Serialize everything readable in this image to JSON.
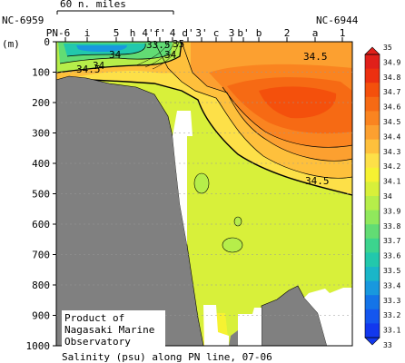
{
  "chart_data": {
    "type": "heatmap",
    "title": "Salinity (psu) along PN line, 07-06",
    "credit": "Product of\nNagasaki Marine\nObservatory",
    "ylabel": "(m)",
    "ylim": [
      0,
      1000
    ],
    "y_ticks": [
      0,
      100,
      200,
      300,
      400,
      500,
      600,
      700,
      800,
      900,
      1000
    ],
    "scale_bar": "60 n. miles",
    "end_labels": {
      "left": "NC-6959",
      "right": "NC-6944"
    },
    "stations": [
      "PN-6",
      "i",
      "5",
      "h",
      "4'",
      "f'",
      "4",
      "d'",
      "3'",
      "c",
      "3",
      "b'",
      "b",
      "2",
      "a",
      "1"
    ],
    "contour_labels": [
      "33.5",
      "34",
      "34",
      "34",
      "34.5",
      "34.5",
      "34.5",
      "35"
    ],
    "colorbar": {
      "levels": [
        35,
        34.9,
        34.8,
        34.7,
        34.6,
        34.5,
        34.4,
        34.3,
        34.2,
        34.1,
        34,
        33.9,
        33.8,
        33.7,
        33.6,
        33.5,
        33.4,
        33.3,
        33.2,
        33.1,
        33
      ],
      "colors": [
        "#e0201a",
        "#ec3010",
        "#f4500c",
        "#f66a14",
        "#fa8420",
        "#fca030",
        "#fec03c",
        "#fde048",
        "#f6f232",
        "#d8f03a",
        "#b6ee4a",
        "#90e85c",
        "#62dc74",
        "#3cd48e",
        "#22c8ac",
        "#1ab6c8",
        "#1898de",
        "#1474e8",
        "#1456ee",
        "#1238ee"
      ]
    }
  }
}
